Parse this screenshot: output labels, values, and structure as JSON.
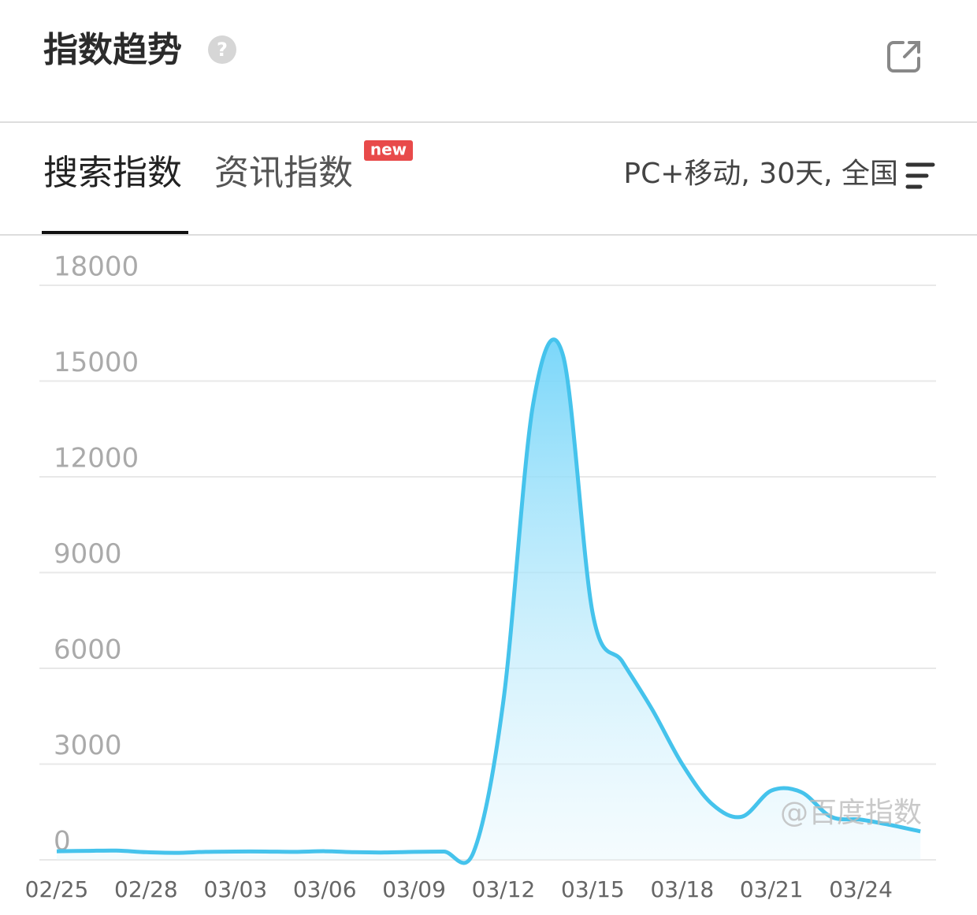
{
  "header": {
    "title": "指数趋势"
  },
  "tabs": [
    "搜索指数",
    "资讯指数"
  ],
  "badge": "new",
  "filter": "PC+移动, 30天, 全国",
  "watermark": "@百度指数",
  "chart_data": {
    "type": "area",
    "categories": [
      "02/25",
      null,
      null,
      "02/28",
      null,
      null,
      "03/03",
      null,
      null,
      "03/06",
      null,
      null,
      "03/09",
      null,
      null,
      "03/12",
      null,
      null,
      "03/15",
      null,
      null,
      "03/18",
      null,
      null,
      "03/21",
      null,
      null,
      "03/24",
      null,
      null
    ],
    "series": [
      {
        "color": "#45c3ec",
        "values": [
          270,
          280,
          290,
          240,
          220,
          250,
          260,
          260,
          250,
          270,
          240,
          230,
          250,
          260,
          250,
          5000,
          14300,
          15800,
          7700,
          6200,
          4700,
          3000,
          1750,
          1350,
          2170,
          2120,
          1350,
          1260,
          1090,
          890
        ]
      }
    ],
    "ylim": [
      0,
      18000
    ],
    "yticks": [
      0,
      3000,
      6000,
      9000,
      12000,
      15000,
      18000
    ],
    "grid": true
  }
}
